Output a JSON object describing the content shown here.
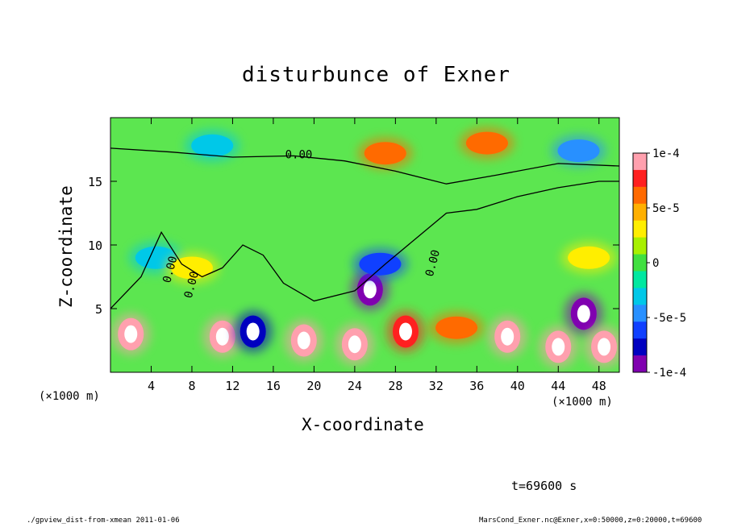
{
  "chart_data": {
    "type": "heatmap",
    "title": "disturbunce of Exner",
    "xlabel": "X-coordinate",
    "ylabel": "Z-coordinate",
    "x_unit_label": "(×1000 m)",
    "x_unit_label_right": "(×1000 m)",
    "xlim": [
      0,
      50
    ],
    "ylim": [
      0,
      20
    ],
    "x_ticks": [
      4,
      8,
      12,
      16,
      20,
      24,
      28,
      32,
      36,
      40,
      44,
      48
    ],
    "x_tick_labels": [
      "4",
      "8",
      "12",
      "16",
      "20",
      "24",
      "28",
      "32",
      "36",
      "40",
      "44",
      "48"
    ],
    "y_ticks": [
      5,
      10,
      15
    ],
    "y_tick_labels": [
      "5",
      "10",
      "15"
    ],
    "colorbar": {
      "min": -0.0001,
      "max": 0.0001,
      "ticks": [
        0.0001,
        5e-05,
        0,
        -5e-05,
        -0.0001
      ],
      "tick_labels": [
        "1e-4",
        "5e-5",
        "0",
        "-5e-5",
        "-1e-4"
      ],
      "colors": [
        "#ffa0ae",
        "#ff2020",
        "#ff6a00",
        "#ffb000",
        "#ffee00",
        "#a8f000",
        "#40e040",
        "#00e8a0",
        "#00c8e8",
        "#2890ff",
        "#1040ff",
        "#0000c0",
        "#8000b0"
      ]
    },
    "contour_labels": [
      "0.00",
      "0.00",
      "0.00",
      "0.00"
    ],
    "features": [
      {
        "x": 27,
        "z": 17.2,
        "value": 6e-05
      },
      {
        "x": 37,
        "z": 18.0,
        "value": 6e-05
      },
      {
        "x": 10,
        "z": 17.8,
        "value": -4e-05
      },
      {
        "x": 46,
        "z": 17.4,
        "value": -5e-05
      },
      {
        "x": 25.5,
        "z": 6.5,
        "value": -0.0001
      },
      {
        "x": 26.5,
        "z": 8.5,
        "value": -6e-05
      },
      {
        "x": 4.5,
        "z": 9.0,
        "value": -4e-05
      },
      {
        "x": 8,
        "z": 8.2,
        "value": 4e-05
      },
      {
        "x": 47,
        "z": 9.0,
        "value": 4e-05
      },
      {
        "x": 2,
        "z": 3.0,
        "value": 0.0001
      },
      {
        "x": 11,
        "z": 2.8,
        "value": 0.0001
      },
      {
        "x": 14,
        "z": 3.2,
        "value": -9e-05
      },
      {
        "x": 19,
        "z": 2.5,
        "value": 0.0001
      },
      {
        "x": 24,
        "z": 2.2,
        "value": 0.0001
      },
      {
        "x": 29,
        "z": 3.2,
        "value": 8e-05
      },
      {
        "x": 34,
        "z": 3.5,
        "value": 6e-05
      },
      {
        "x": 39,
        "z": 2.8,
        "value": 0.0001
      },
      {
        "x": 44,
        "z": 2.0,
        "value": 0.0001
      },
      {
        "x": 46.5,
        "z": 4.6,
        "value": -0.0001
      },
      {
        "x": 48.5,
        "z": 2.0,
        "value": 0.0001
      }
    ]
  },
  "time_label": "t=69600 s",
  "footer_left": "./gpview_dist-from-xmean  2011-01-06",
  "footer_right": "MarsCond_Exner.nc@Exner,x=0:50000,z=0:20000,t=69600"
}
